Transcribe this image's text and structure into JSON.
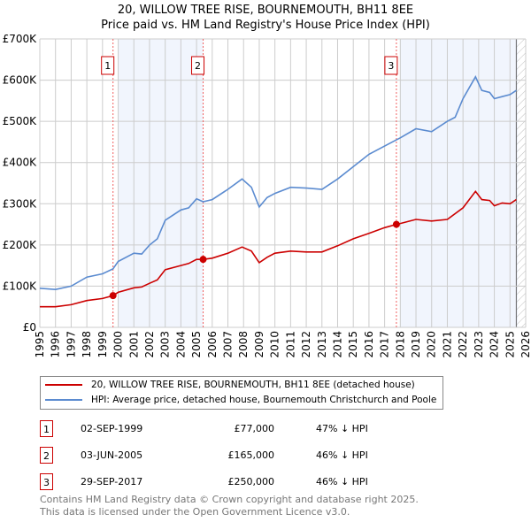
{
  "title_line1": "20, WILLOW TREE RISE, BOURNEMOUTH, BH11 8EE",
  "title_line2": "Price paid vs. HM Land Registry's House Price Index (HPI)",
  "chart_data": {
    "type": "line",
    "xlim": [
      1995,
      2026
    ],
    "ylim": [
      0,
      700000
    ],
    "x_ticks": [
      "1995",
      "1996",
      "1997",
      "1998",
      "1999",
      "2000",
      "2001",
      "2002",
      "2003",
      "2004",
      "2005",
      "2006",
      "2007",
      "2008",
      "2009",
      "2010",
      "2011",
      "2012",
      "2013",
      "2014",
      "2015",
      "2016",
      "2017",
      "2018",
      "2019",
      "2020",
      "2021",
      "2022",
      "2023",
      "2024",
      "2025",
      "2026"
    ],
    "y_ticks": [
      {
        "v": 0,
        "label": "£0"
      },
      {
        "v": 100000,
        "label": "£100K"
      },
      {
        "v": 200000,
        "label": "£200K"
      },
      {
        "v": 300000,
        "label": "£300K"
      },
      {
        "v": 400000,
        "label": "£400K"
      },
      {
        "v": 500000,
        "label": "£500K"
      },
      {
        "v": 600000,
        "label": "£600K"
      },
      {
        "v": 700000,
        "label": "£700K"
      }
    ],
    "grid": true,
    "shaded_periods": [
      [
        2000,
        2005.42
      ],
      [
        2018,
        2025.5
      ]
    ],
    "hatched_after": 2025.4,
    "series": [
      {
        "name": "20, WILLOW TREE RISE, BOURNEMOUTH, BH11 8EE (detached house)",
        "color": "#cc0000",
        "x": [
          1995,
          1996,
          1997,
          1998,
          1999,
          1999.67,
          2000,
          2001,
          2001.5,
          2002,
          2002.5,
          2003,
          2004,
          2004.5,
          2005,
          2005.42,
          2006,
          2007,
          2007.9,
          2008.5,
          2009,
          2009.5,
          2010,
          2011,
          2012,
          2013,
          2014,
          2015,
          2016,
          2017,
          2017.75,
          2018,
          2019,
          2020,
          2021,
          2022,
          2022.8,
          2023.2,
          2023.7,
          2024,
          2024.5,
          2025,
          2025.4
        ],
        "y": [
          50000,
          50000,
          55000,
          65000,
          70000,
          77000,
          85000,
          96000,
          98000,
          107000,
          115000,
          140000,
          150000,
          155000,
          165000,
          165000,
          168000,
          180000,
          195000,
          185000,
          157000,
          170000,
          180000,
          185000,
          183000,
          183000,
          198000,
          215000,
          228000,
          242000,
          250000,
          252000,
          262000,
          258000,
          262000,
          290000,
          330000,
          310000,
          308000,
          295000,
          302000,
          300000,
          310000
        ]
      },
      {
        "name": "HPI: Average price, detached house, Bournemouth Christchurch and Poole",
        "color": "#5b8bd0",
        "x": [
          1995,
          1996,
          1997,
          1998,
          1999,
          1999.67,
          2000,
          2001,
          2001.5,
          2002,
          2002.5,
          2003,
          2004,
          2004.5,
          2005,
          2005.42,
          2006,
          2007,
          2007.9,
          2008.5,
          2009,
          2009.5,
          2010,
          2011,
          2012,
          2013,
          2014,
          2015,
          2016,
          2017,
          2017.75,
          2018,
          2019,
          2020,
          2021,
          2021.5,
          2022,
          2022.8,
          2023.2,
          2023.7,
          2024,
          2024.5,
          2025,
          2025.4
        ],
        "y": [
          95000,
          92000,
          100000,
          122000,
          130000,
          142000,
          160000,
          180000,
          178000,
          200000,
          215000,
          260000,
          285000,
          290000,
          312000,
          305000,
          310000,
          335000,
          360000,
          340000,
          292000,
          315000,
          325000,
          340000,
          338000,
          335000,
          360000,
          390000,
          420000,
          440000,
          455000,
          460000,
          482000,
          475000,
          500000,
          510000,
          555000,
          608000,
          575000,
          570000,
          555000,
          560000,
          565000,
          575000
        ]
      }
    ],
    "sales": [
      {
        "label": "1",
        "x": 1999.67,
        "y": 77000
      },
      {
        "label": "2",
        "x": 2005.42,
        "y": 165000
      },
      {
        "label": "3",
        "x": 2017.75,
        "y": 250000
      }
    ]
  },
  "legend": {
    "property": "20, WILLOW TREE RISE, BOURNEMOUTH, BH11 8EE (detached house)",
    "hpi": "HPI: Average price, detached house, Bournemouth Christchurch and Poole"
  },
  "transactions": [
    {
      "num": "1",
      "date": "02-SEP-1999",
      "price": "£77,000",
      "hpi": "47% ↓ HPI"
    },
    {
      "num": "2",
      "date": "03-JUN-2005",
      "price": "£165,000",
      "hpi": "46% ↓ HPI"
    },
    {
      "num": "3",
      "date": "29-SEP-2017",
      "price": "£250,000",
      "hpi": "46% ↓ HPI"
    }
  ],
  "footer_line1": "Contains HM Land Registry data © Crown copyright and database right 2025.",
  "footer_line2": "This data is licensed under the Open Government Licence v3.0."
}
